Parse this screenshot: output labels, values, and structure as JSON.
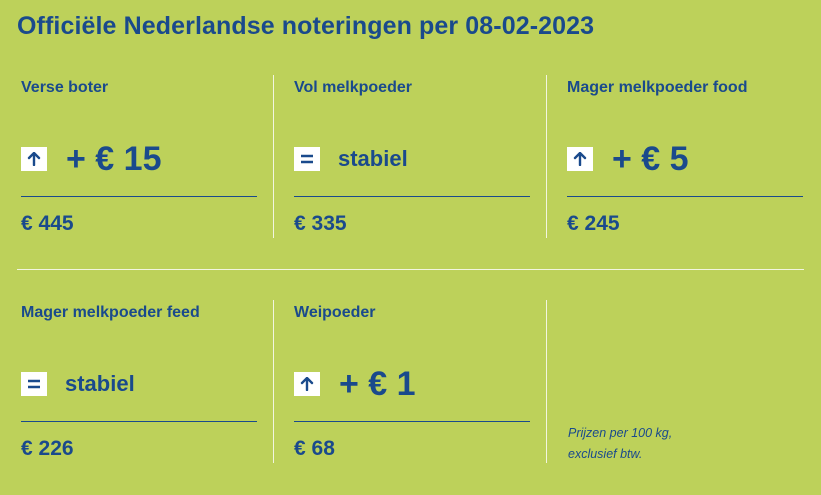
{
  "title": "Officiële Nederlandse noteringen per 08-02-2023",
  "items": [
    {
      "label": "Verse boter",
      "trend": "up",
      "icon": "arrow-up-icon",
      "change": "+ € 15",
      "price": "€ 445"
    },
    {
      "label": "Vol melkpoeder",
      "trend": "equal",
      "icon": "equals-icon",
      "change": "stabiel",
      "price": "€ 335"
    },
    {
      "label": "Mager melkpoeder food",
      "trend": "up",
      "icon": "arrow-up-icon",
      "change": "+ € 5",
      "price": "€ 245"
    },
    {
      "label": "Mager melkpoeder feed",
      "trend": "equal",
      "icon": "equals-icon",
      "change": "stabiel",
      "price": "€ 226"
    },
    {
      "label": "Weipoeder",
      "trend": "up",
      "icon": "arrow-up-icon",
      "change": "+ € 1",
      "price": "€ 68"
    }
  ],
  "note": {
    "line1": "Prijzen per 100 kg,",
    "line2": "exclusief btw."
  },
  "colors": {
    "background": "#bdd15a",
    "text": "#1a4a8c",
    "icon_bg": "#ffffff",
    "divider": "#f2f5e0"
  }
}
